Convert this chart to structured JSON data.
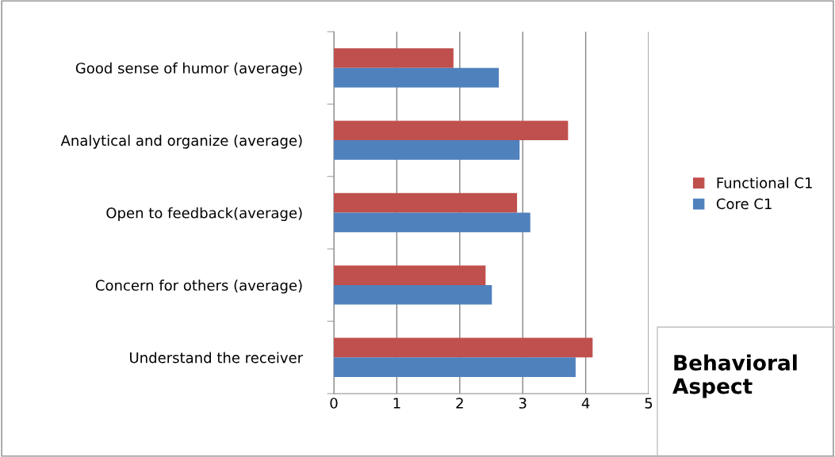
{
  "chart_data": {
    "type": "bar",
    "orientation": "horizontal",
    "categories": [
      "Good sense of humor (average)",
      "Analytical and organize (average)",
      "Open to feedback(average)",
      "Concern for others (average)",
      "Understand the receiver"
    ],
    "series": [
      {
        "name": "Functional C1",
        "color": "#c0504d",
        "values": [
          1.9,
          3.72,
          2.91,
          2.41,
          4.11
        ]
      },
      {
        "name": "Core C1",
        "color": "#4f81bd",
        "values": [
          2.62,
          2.95,
          3.12,
          2.51,
          3.84
        ]
      }
    ],
    "xlim": [
      0,
      5
    ],
    "xticks": [
      0,
      1,
      2,
      3,
      4,
      5
    ],
    "grid": "x",
    "legend": "right",
    "annotations": [
      "Behavioral Aspect"
    ]
  }
}
